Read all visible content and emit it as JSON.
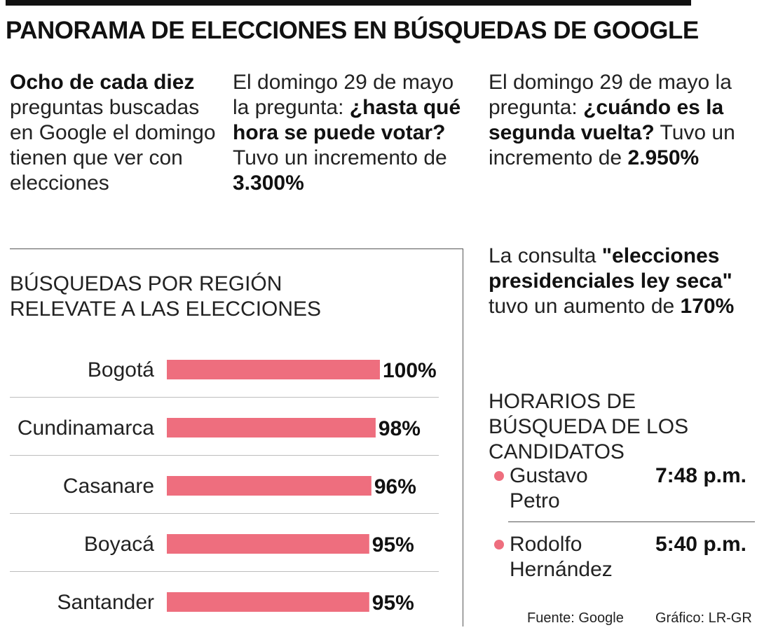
{
  "title": "PANORAMA DE ELECCIONES EN BÚSQUEDAS DE GOOGLE",
  "stats": {
    "col1": {
      "bold": "Ocho de cada diez",
      "text": " preguntas buscadas en Google el domingo tienen que ver con elecciones"
    },
    "col2": {
      "pre": "El domingo 29 de mayo la pregunta: ",
      "question": "¿hasta qué hora se puede votar?",
      "mid": " Tuvo un incremento de ",
      "value": "3.300%"
    },
    "col3": {
      "pre": "El domingo 29 de mayo la pregunta: ",
      "question": "¿cuándo es la segunda vuelta?",
      "mid": " Tuvo un incremento de ",
      "value": "2.950%"
    },
    "col4": {
      "pre": "La consulta ",
      "query": "\"elecciones presidenciales ley seca\"",
      "mid": " tuvo un aumento de ",
      "value": "170%"
    }
  },
  "chart_data": {
    "type": "bar",
    "orientation": "horizontal",
    "title": "BÚSQUEDAS POR REGIÓN RELEVATE A LAS ELECCIONES",
    "categories": [
      "Bogotá",
      "Cundinamarca",
      "Casanare",
      "Boyacá",
      "Santander"
    ],
    "values": [
      100,
      98,
      96,
      95,
      95
    ],
    "value_labels": [
      "100%",
      "98%",
      "96%",
      "95%",
      "95%"
    ],
    "unit": "%",
    "xlim": [
      0,
      100
    ],
    "bar_color": "#ee6e7e",
    "grid": false,
    "legend": "none"
  },
  "horarios": {
    "title": "HORARIOS DE BÚSQUEDA DE LOS CANDIDATOS",
    "candidates": [
      {
        "name": "Gustavo Petro",
        "time": "7:48 p.m."
      },
      {
        "name": "Rodolfo Hernández",
        "time": "5:40 p.m."
      }
    ],
    "dot_color": "#ee6e7e"
  },
  "footer": {
    "source": "Fuente: Google",
    "credit": "Gráfico: LR-GR"
  }
}
